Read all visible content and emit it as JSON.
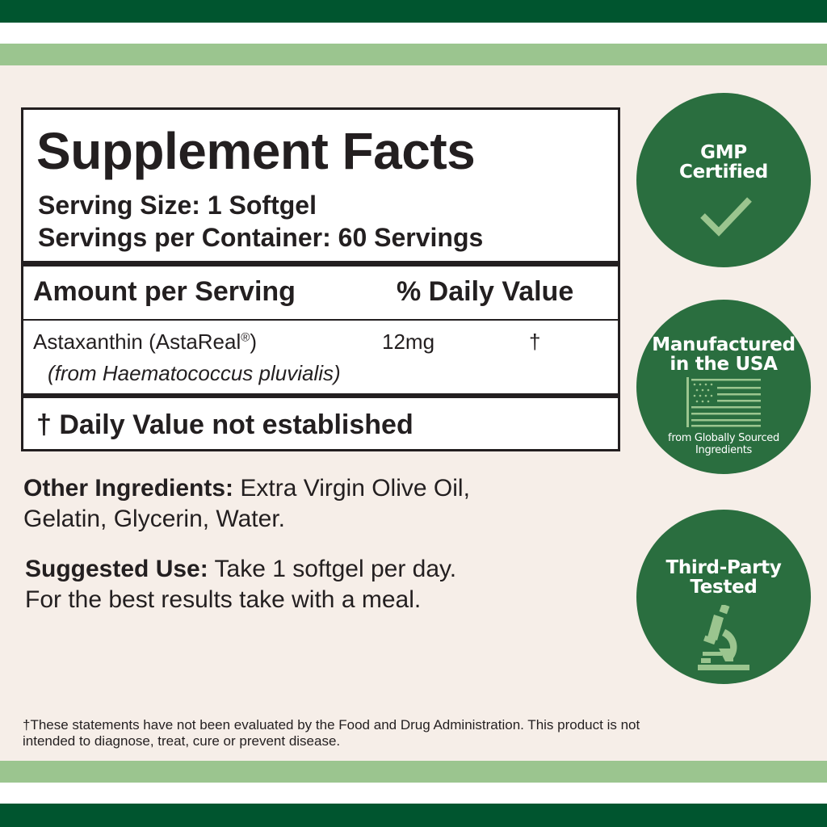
{
  "colors": {
    "dark_green": "#00552f",
    "light_green": "#9bc58f",
    "badge_green": "#2a6e3f",
    "background": "#f6eee8"
  },
  "label": {
    "title": "Supplement Facts",
    "serving_size": "Serving Size: 1 Softgel",
    "servings_per_container": "Servings per Container: 60 Servings",
    "amount_header": "Amount per Serving",
    "dv_header": "% Daily Value",
    "ingredient": {
      "name": "Astaxanthin (AstaReal",
      "reg": "®",
      ")": ")",
      "amount": "12mg",
      "dv": "†",
      "source": "(from Haematococcus pluvialis)"
    },
    "footnote": "† Daily Value not established"
  },
  "other_ingredients": {
    "label": "Other Ingredients:",
    "line1": " Extra Virgin Olive Oil,",
    "line2": "Gelatin, Glycerin, Water."
  },
  "suggested_use": {
    "label": "Suggested Use:",
    "line1": " Take 1 softgel per day.",
    "line2": "For the best results take with a meal."
  },
  "badges": [
    {
      "line1": "GMP",
      "line2": "Certified",
      "icon": "checkmark-icon"
    },
    {
      "line1": "Manufactured",
      "line2": "in the USA",
      "sub1": "from Globally Sourced",
      "sub2": "Ingredients",
      "icon": "us-flag-icon"
    },
    {
      "line1": "Third-Party",
      "line2": "Tested",
      "icon": "microscope-icon"
    }
  ],
  "disclaimer": {
    "line1": "†These statements have not been evaluated by the Food and Drug Administration. This product is not",
    "line2": "intended to diagnose, treat, cure or prevent disease."
  }
}
